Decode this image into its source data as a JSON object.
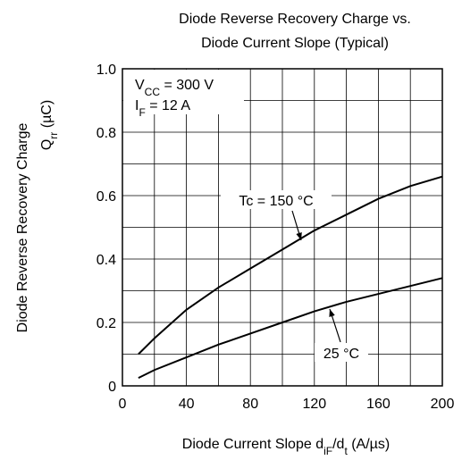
{
  "chart_data": {
    "type": "line",
    "title": [
      "Diode Reverse Recovery Charge vs.",
      "Diode Current Slope (Typical)"
    ],
    "x_label": [
      {
        "t": "Diode Current Slope  d"
      },
      {
        "t": "iF",
        "sub": true
      },
      {
        "t": "/d"
      },
      {
        "t": "t",
        "sub": true
      },
      {
        "t": "  (A/µs)"
      }
    ],
    "y_label": [
      [
        {
          "t": "Diode Reverse Recovery Charge"
        }
      ],
      [
        {
          "t": "Q"
        },
        {
          "t": "rr",
          "sub": true
        },
        {
          "t": "  (µC)"
        }
      ]
    ],
    "conditions": [
      [
        {
          "t": "V"
        },
        {
          "t": "CC",
          "sub": true
        },
        {
          "t": " = 300 V"
        }
      ],
      [
        {
          "t": "I"
        },
        {
          "t": "F",
          "sub": true
        },
        {
          "t": " = 12 A"
        }
      ]
    ],
    "xlim": [
      0,
      200
    ],
    "xticks": [
      0,
      40,
      80,
      120,
      160,
      200
    ],
    "minor_xticks": [
      20,
      60,
      100,
      140,
      180
    ],
    "ylim": [
      0,
      1
    ],
    "yticks": [
      0,
      0.2,
      0.4,
      0.6,
      0.8,
      {
        "value": 1,
        "label": "1.0"
      }
    ],
    "minor_yticks": [
      0.1,
      0.3,
      0.5,
      0.7,
      0.9
    ],
    "grid": true,
    "x": [
      10,
      20,
      40,
      60,
      80,
      100,
      120,
      140,
      160,
      180,
      200
    ],
    "series": [
      {
        "name": "Tc = 150 °C",
        "color": "#000000",
        "values": [
          0.1,
          0.15,
          0.24,
          0.31,
          0.37,
          0.43,
          0.49,
          0.54,
          0.59,
          0.63,
          0.66
        ]
      },
      {
        "name": "25 °C",
        "color": "#000000",
        "values": [
          0.025,
          0.05,
          0.09,
          0.13,
          0.165,
          0.2,
          0.235,
          0.265,
          0.29,
          0.315,
          0.34
        ]
      }
    ]
  }
}
